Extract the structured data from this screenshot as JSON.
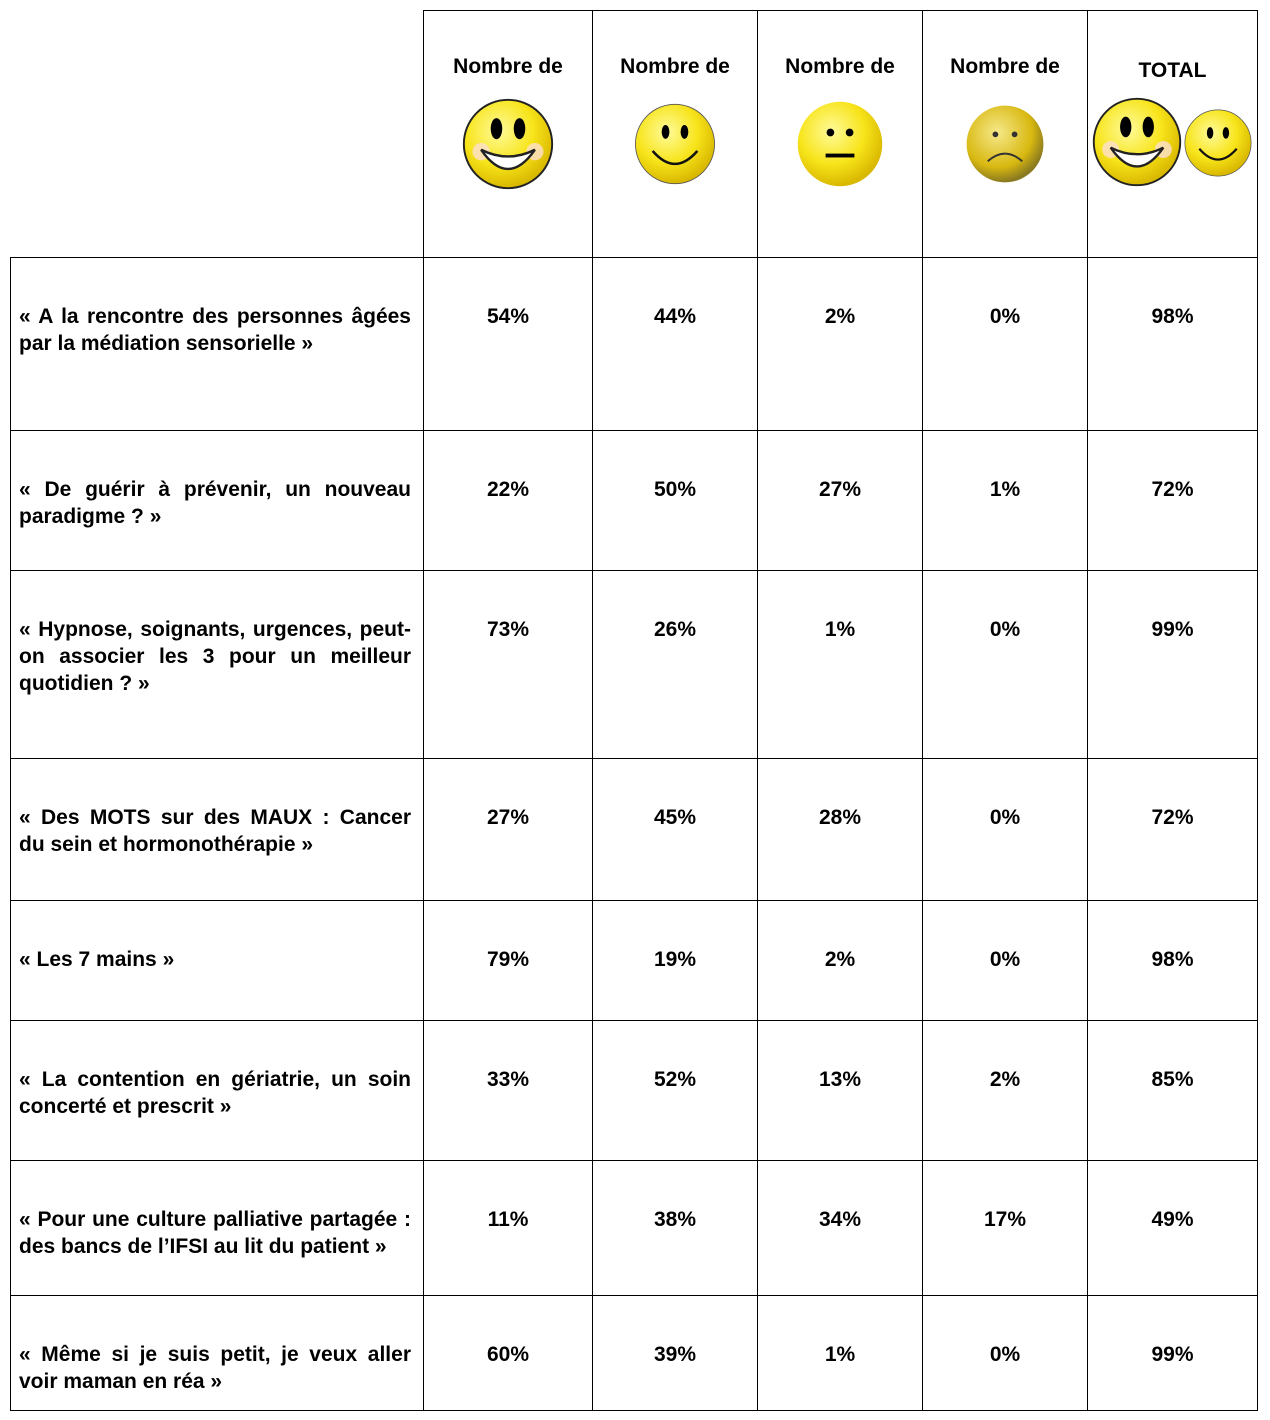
{
  "table": {
    "header": [
      "Nombre de",
      "Nombre de",
      "Nombre de",
      "Nombre de",
      "TOTAL"
    ],
    "rows": [
      {
        "label": "« A la rencontre des personnes âgées par la médiation sensorielle »",
        "values": [
          "54%",
          "44%",
          "2%",
          "0%",
          "98%"
        ]
      },
      {
        "label": "« De guérir à prévenir, un nouveau paradigme ? »",
        "values": [
          "22%",
          "50%",
          "27%",
          "1%",
          "72%"
        ]
      },
      {
        "label": "« Hypnose, soignants, urgences, peut-on associer les 3 pour un meilleur quotidien ? »",
        "values": [
          "73%",
          "26%",
          "1%",
          "0%",
          "99%"
        ]
      },
      {
        "label": "« Des MOTS sur des MAUX : Cancer du sein et hormonothérapie »",
        "values": [
          "27%",
          "45%",
          "28%",
          "0%",
          "72%"
        ]
      },
      {
        "label": "« Les 7 mains »",
        "values": [
          "79%",
          "19%",
          "2%",
          "0%",
          "98%"
        ]
      },
      {
        "label": "« La contention en gériatrie, un soin concerté et prescrit »",
        "values": [
          "33%",
          "52%",
          "13%",
          "2%",
          "85%"
        ]
      },
      {
        "label": "« Pour une culture palliative partagée : des bancs de l’IFSI au lit du patient »",
        "values": [
          "11%",
          "38%",
          "34%",
          "17%",
          "49%"
        ]
      },
      {
        "label": "« Même si je suis petit, je veux aller voir maman en réa »",
        "values": [
          "60%",
          "39%",
          "1%",
          "0%",
          "99%"
        ]
      }
    ]
  }
}
